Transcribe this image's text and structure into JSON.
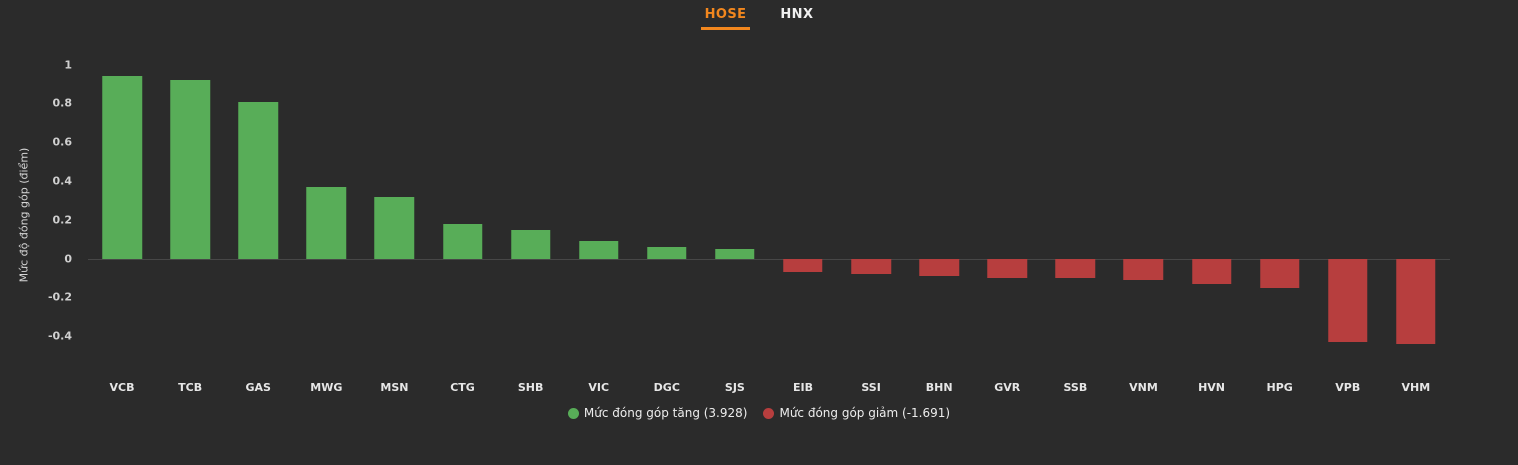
{
  "tabs": [
    {
      "label": "HOSE",
      "active": true
    },
    {
      "label": "HNX",
      "active": false
    }
  ],
  "colors": {
    "positive": "#58ad58",
    "negative": "#b73e3e",
    "accent": "#f2871e",
    "background": "#2b2b2b"
  },
  "chart_data": {
    "type": "bar",
    "title": "",
    "xlabel": "",
    "ylabel": "Mức độ đóng góp (điểm)",
    "ylim": [
      -0.6,
      1.05
    ],
    "yticks": [
      1,
      0.8,
      0.6,
      0.4,
      0.2,
      0,
      -0.2,
      -0.4
    ],
    "grid": false,
    "categories": [
      "VCB",
      "TCB",
      "GAS",
      "MWG",
      "MSN",
      "CTG",
      "SHB",
      "VIC",
      "DGC",
      "SJS",
      "EIB",
      "SSI",
      "BHN",
      "GVR",
      "SSB",
      "VNM",
      "HVN",
      "HPG",
      "VPB",
      "VHM"
    ],
    "values": [
      0.94,
      0.92,
      0.81,
      0.37,
      0.32,
      0.18,
      0.15,
      0.09,
      0.06,
      0.05,
      -0.07,
      -0.08,
      -0.09,
      -0.1,
      -0.1,
      -0.11,
      -0.13,
      -0.15,
      -0.43,
      -0.44
    ],
    "legend_position": "bottom",
    "legend": [
      {
        "label": "Mức đóng góp tăng (3.928)",
        "color": "positive"
      },
      {
        "label": "Mức đóng góp giảm (-1.691)",
        "color": "negative"
      }
    ]
  }
}
